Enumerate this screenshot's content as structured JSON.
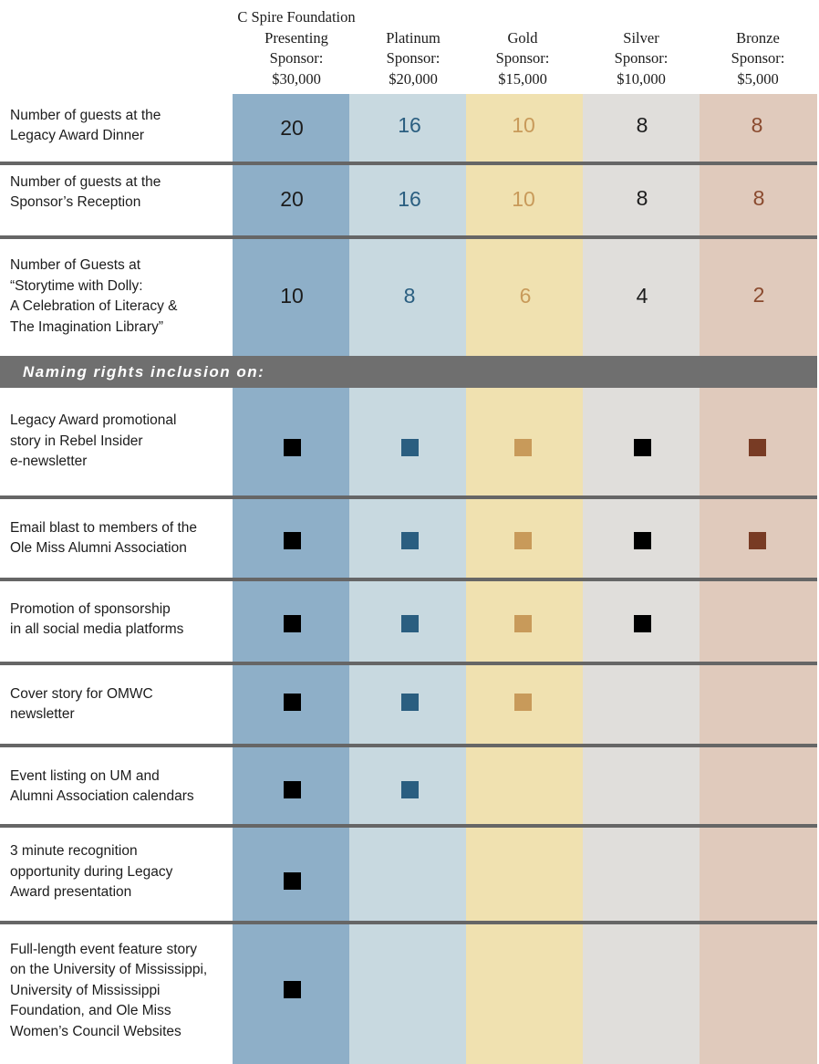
{
  "columns": [
    {
      "key": "presenting",
      "lines": [
        "C Spire Foundation",
        "Presenting",
        "Sponsor:",
        "$30,000"
      ],
      "bg": "#8eafc8",
      "mark": "#000000",
      "num": "#1c1c1c"
    },
    {
      "key": "platinum",
      "lines": [
        "Platinum",
        "Sponsor:",
        "$20,000"
      ],
      "bg": "#c8d9e0",
      "mark": "#2a5e80",
      "num": "#2a5e80"
    },
    {
      "key": "gold",
      "lines": [
        "Gold",
        "Sponsor:",
        "$15,000"
      ],
      "bg": "#f0e1b0",
      "mark": "#c89a5a",
      "num": "#c89a5a"
    },
    {
      "key": "silver",
      "lines": [
        "Silver",
        "Sponsor:",
        "$10,000"
      ],
      "bg": "#e0dedb",
      "mark": "#000000",
      "num": "#1c1c1c"
    },
    {
      "key": "bronze",
      "lines": [
        "Bronze",
        "Sponsor:",
        "$5,000"
      ],
      "bg": "#e0cabc",
      "mark": "#783b24",
      "num": "#8a4a2e"
    }
  ],
  "guest_rows": [
    {
      "label": [
        "Number of guests at the",
        "Legacy Award Dinner"
      ],
      "values": [
        "20",
        "16",
        "10",
        "8",
        "8"
      ]
    },
    {
      "label": [
        "Number of guests at the",
        "Sponsor’s Reception"
      ],
      "values": [
        "20",
        "16",
        "10",
        "8",
        "8"
      ]
    },
    {
      "label": [
        "Number of Guests at",
        "“Storytime with Dolly:",
        "A Celebration of Literacy &",
        "The Imagination Library”"
      ],
      "values": [
        "10",
        "8",
        "6",
        "4",
        "2"
      ]
    }
  ],
  "section_title": "Naming rights inclusion on:",
  "benefit_rows": [
    {
      "label": [
        "Legacy Award promotional",
        "story in Rebel Insider",
        "e-newsletter"
      ],
      "included": [
        true,
        true,
        true,
        true,
        true
      ]
    },
    {
      "label": [
        "Email blast to members of the",
        "Ole Miss Alumni Association"
      ],
      "included": [
        true,
        true,
        true,
        true,
        true
      ]
    },
    {
      "label": [
        "Promotion of sponsorship",
        "in all social media platforms"
      ],
      "included": [
        true,
        true,
        true,
        true,
        false
      ]
    },
    {
      "label": [
        "Cover story for OMWC",
        "newsletter"
      ],
      "included": [
        true,
        true,
        true,
        false,
        false
      ]
    },
    {
      "label": [
        "Event listing on UM and",
        "Alumni Association calendars"
      ],
      "included": [
        true,
        true,
        false,
        false,
        false
      ]
    },
    {
      "label": [
        "3 minute recognition",
        "opportunity during Legacy",
        "Award presentation"
      ],
      "included": [
        true,
        false,
        false,
        false,
        false
      ]
    },
    {
      "label": [
        "Full-length event feature story",
        "on the University of Mississippi,",
        "University of Mississippi",
        "Foundation, and Ole Miss",
        "Women’s Council Websites"
      ],
      "included": [
        true,
        false,
        false,
        false,
        false
      ]
    }
  ]
}
